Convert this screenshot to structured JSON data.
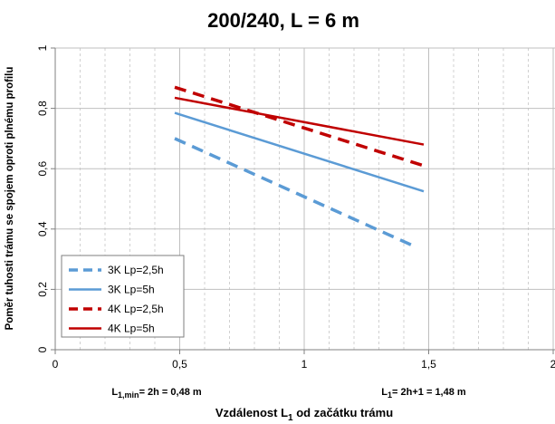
{
  "chart_data": {
    "type": "line",
    "title": "200/240, L = 6 m",
    "ylabel": "Poměr tuhosti trámu se spojem oproti plnému profilu",
    "xlabel_main": "Vzdálenost L",
    "xlabel_sub": "1",
    "xlabel_rest": " od začátku trámu",
    "xlim": [
      0,
      2
    ],
    "ylim": [
      0,
      1
    ],
    "x_ticks": [
      {
        "value": 0,
        "label": "0"
      },
      {
        "value": 0.5,
        "label": "0,5"
      },
      {
        "value": 1,
        "label": "1"
      },
      {
        "value": 1.5,
        "label": "1,5"
      },
      {
        "value": 2,
        "label": "2"
      }
    ],
    "y_ticks": [
      {
        "value": 0,
        "label": "0"
      },
      {
        "value": 0.2,
        "label": "0,2"
      },
      {
        "value": 0.4,
        "label": "0,4"
      },
      {
        "value": 0.6,
        "label": "0,6"
      },
      {
        "value": 0.8,
        "label": "0,8"
      },
      {
        "value": 1,
        "label": "1"
      }
    ],
    "minor_x_step": 0.1,
    "grid": true,
    "legend_position": "bottom-left",
    "annotations": {
      "left": {
        "x": 0.48,
        "main": "L",
        "sub": "1,min",
        "rest": "= 2h = 0,48 m"
      },
      "right": {
        "x": 1.48,
        "main": "L",
        "sub": "1",
        "rest": "= 2h+1 = 1,48 m"
      }
    },
    "series": [
      {
        "name": "3K Lp=2,5h",
        "color": "#5b9bd5",
        "dash": true,
        "x": [
          0.48,
          1.45
        ],
        "y": [
          0.7,
          0.34
        ]
      },
      {
        "name": "3K Lp=5h",
        "color": "#5b9bd5",
        "dash": false,
        "x": [
          0.48,
          1.48
        ],
        "y": [
          0.785,
          0.525
        ]
      },
      {
        "name": "4K Lp=2,5h",
        "color": "#c00000",
        "dash": true,
        "x": [
          0.48,
          1.48
        ],
        "y": [
          0.87,
          0.61
        ]
      },
      {
        "name": "4K Lp=5h",
        "color": "#c00000",
        "dash": false,
        "x": [
          0.48,
          1.48
        ],
        "y": [
          0.835,
          0.68
        ]
      }
    ]
  }
}
